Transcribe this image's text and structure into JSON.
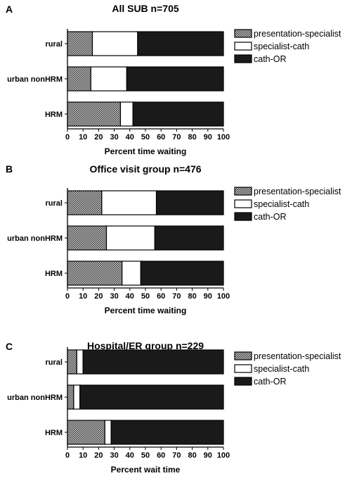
{
  "chart_data": [
    {
      "type": "bar",
      "stacked": true,
      "orientation": "horizontal",
      "panel": "A",
      "title": "All SUB n=705",
      "xlabel": "Percent time waiting",
      "ylabel": "",
      "xlim": [
        0,
        100
      ],
      "xticks": [
        "0",
        "10",
        "20",
        "30",
        "40",
        "50",
        "60",
        "70",
        "80",
        "90",
        "100"
      ],
      "categories": [
        "rural",
        "urban nonHRM",
        "HRM"
      ],
      "series": [
        {
          "name": "presentation-specialist",
          "values": [
            16,
            15,
            34
          ],
          "color": "#8c8c8c",
          "pattern": "checker"
        },
        {
          "name": "specialist-cath",
          "values": [
            29,
            23,
            8
          ],
          "color": "#ffffff",
          "pattern": "none"
        },
        {
          "name": "cath-OR",
          "values": [
            55,
            62,
            58
          ],
          "color": "#1a1a1a",
          "pattern": "none"
        }
      ],
      "legend": "right",
      "grid": false
    },
    {
      "type": "bar",
      "stacked": true,
      "orientation": "horizontal",
      "panel": "B",
      "title": "Office visit group n=476",
      "xlabel": "Percent time waiting",
      "ylabel": "",
      "xlim": [
        0,
        100
      ],
      "xticks": [
        "0",
        "10",
        "20",
        "30",
        "40",
        "50",
        "60",
        "70",
        "80",
        "90",
        "100"
      ],
      "categories": [
        "rural",
        "urban nonHRM",
        "HRM"
      ],
      "series": [
        {
          "name": "presentation-specialist",
          "values": [
            22,
            25,
            35
          ],
          "color": "#8c8c8c",
          "pattern": "checker"
        },
        {
          "name": "specialist-cath",
          "values": [
            35,
            31,
            12
          ],
          "color": "#ffffff",
          "pattern": "none"
        },
        {
          "name": "cath-OR",
          "values": [
            43,
            44,
            53
          ],
          "color": "#1a1a1a",
          "pattern": "none"
        }
      ],
      "legend": "right",
      "grid": false
    },
    {
      "type": "bar",
      "stacked": true,
      "orientation": "horizontal",
      "panel": "C",
      "title": "Hospital/ER group n=229",
      "xlabel": "Percent wait time",
      "ylabel": "",
      "xlim": [
        0,
        100
      ],
      "xticks": [
        "0",
        "10",
        "20",
        "30",
        "40",
        "50",
        "60",
        "70",
        "80",
        "90",
        "100"
      ],
      "categories": [
        "rural",
        "urban nonHRM",
        "HRM"
      ],
      "series": [
        {
          "name": "presentation-specialist",
          "values": [
            6,
            4,
            24
          ],
          "color": "#8c8c8c",
          "pattern": "checker"
        },
        {
          "name": "specialist-cath",
          "values": [
            4,
            4,
            4
          ],
          "color": "#ffffff",
          "pattern": "none"
        },
        {
          "name": "cath-OR",
          "values": [
            90,
            92,
            72
          ],
          "color": "#1a1a1a",
          "pattern": "none"
        }
      ],
      "legend": "right",
      "grid": false
    }
  ]
}
